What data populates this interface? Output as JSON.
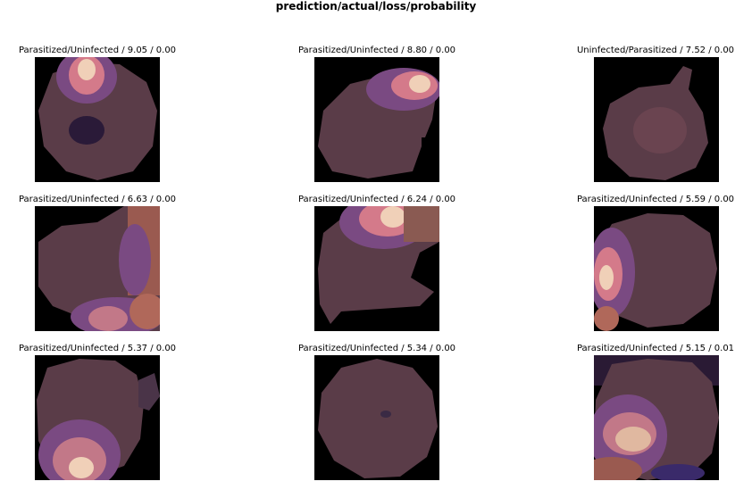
{
  "figure": {
    "title": "prediction/actual/loss/probability"
  },
  "panels": [
    {
      "title": "Parasitized/Uninfected / 9.05 / 0.00",
      "cell": "blob",
      "heat": "top-bright"
    },
    {
      "title": "Parasitized/Uninfected / 8.80 / 0.00",
      "cell": "blob",
      "heat": "top-right-bright"
    },
    {
      "title": "Uninfected/Parasitized / 7.52 / 0.00",
      "cell": "blob",
      "heat": "none"
    },
    {
      "title": "Parasitized/Uninfected / 6.63 / 0.00",
      "cell": "blob",
      "heat": "right-edges"
    },
    {
      "title": "Parasitized/Uninfected / 6.24 / 0.00",
      "cell": "blob",
      "heat": "top-right-bright"
    },
    {
      "title": "Parasitized/Uninfected / 5.59 / 0.00",
      "cell": "blob",
      "heat": "left-bright"
    },
    {
      "title": "Parasitized/Uninfected / 5.37 / 0.00",
      "cell": "blob",
      "heat": "bottom-bright"
    },
    {
      "title": "Parasitized/Uninfected / 5.34 / 0.00",
      "cell": "blob",
      "heat": "none"
    },
    {
      "title": "Parasitized/Uninfected / 5.15 / 0.01",
      "cell": "blob",
      "heat": "bottom-left-bright"
    }
  ]
}
